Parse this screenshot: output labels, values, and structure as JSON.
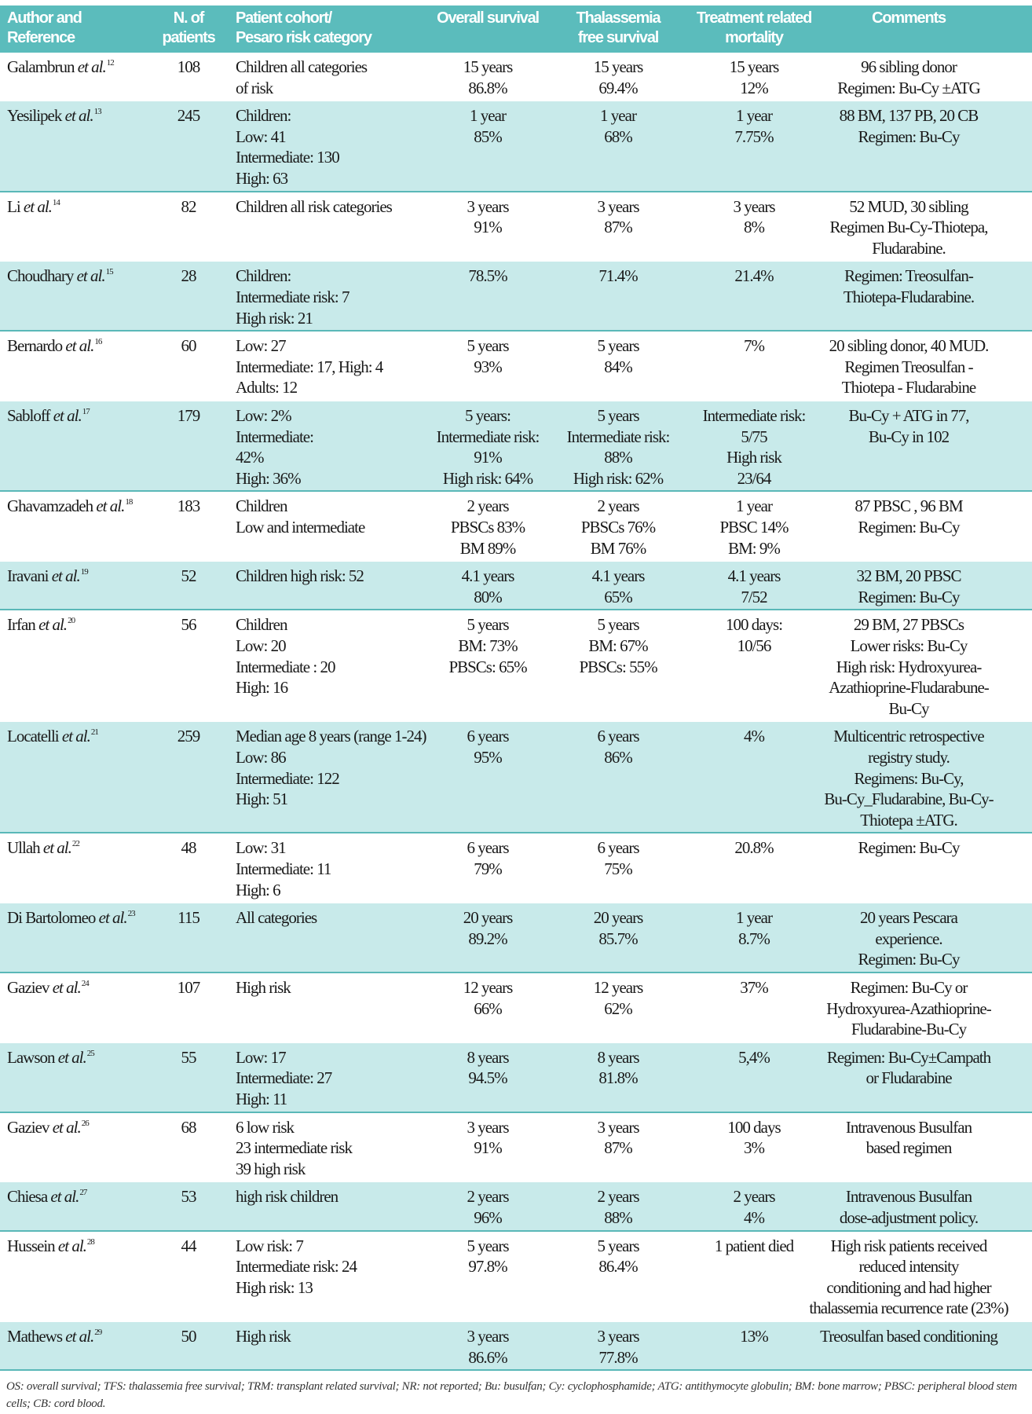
{
  "colors": {
    "header_bg": "#5bbcbc",
    "stripe_bg": "#c8eaea",
    "rule": "#5ab8b8"
  },
  "header": {
    "author": [
      "Author and",
      "Reference"
    ],
    "n": [
      "N. of",
      "patients"
    ],
    "cohort": [
      "Patient cohort/",
      "Pesaro risk category"
    ],
    "os": [
      "Overall survival"
    ],
    "tfs": [
      "Thalassemia",
      "free survival"
    ],
    "trm": [
      "Treatment related",
      "mortality"
    ],
    "comments": [
      "Comments"
    ]
  },
  "rows": [
    {
      "name": "Galambrun",
      "etal": "et al.",
      "ref": "12",
      "n": "108",
      "cohort": [
        "Children all categories",
        "of risk"
      ],
      "os": [
        "15 years",
        "86.8%"
      ],
      "tfs": [
        "15 years",
        "69.4%"
      ],
      "trm": [
        "15 years",
        "12%"
      ],
      "comments": [
        "96 sibling donor",
        "Regimen: Bu-Cy ±ATG"
      ]
    },
    {
      "name": "Yesilipek",
      "etal": "et al.",
      "ref": "13",
      "n": "245",
      "cohort": [
        "Children:",
        "Low: 41",
        "Intermediate: 130",
        "High: 63"
      ],
      "os": [
        "1 year",
        "85%"
      ],
      "tfs": [
        "1 year",
        "68%"
      ],
      "trm": [
        "1 year",
        "7.75%"
      ],
      "comments": [
        "88 BM, 137 PB, 20 CB",
        "Regimen: Bu-Cy"
      ]
    },
    {
      "name": "Li",
      "etal": "et al.",
      "ref": "14",
      "n": "82",
      "cohort": [
        "Children all risk categories"
      ],
      "os": [
        "3 years",
        "91%"
      ],
      "tfs": [
        "3 years",
        "87%"
      ],
      "trm": [
        "3 years",
        "8%"
      ],
      "comments": [
        "52 MUD, 30 sibling",
        "Regimen Bu-Cy-Thiotepa,",
        "Fludarabine."
      ]
    },
    {
      "name": "Choudhary",
      "etal": "et al.",
      "ref": "15",
      "n": "28",
      "cohort": [
        "Children:",
        "Intermediate risk: 7",
        "High risk: 21"
      ],
      "os": [
        "78.5%"
      ],
      "tfs": [
        "71.4%"
      ],
      "trm": [
        "21.4%"
      ],
      "comments": [
        "Regimen: Treosulfan-",
        "Thiotepa-Fludarabine."
      ]
    },
    {
      "name": "Bernardo",
      "etal": "et al.",
      "ref": "16",
      "n": "60",
      "cohort": [
        "Low: 27",
        "Intermediate: 17, High: 4",
        "Adults: 12"
      ],
      "os": [
        "5 years",
        "93%"
      ],
      "tfs": [
        "5 years",
        "84%"
      ],
      "trm": [
        "7%"
      ],
      "comments": [
        "20 sibling donor, 40 MUD.",
        "Regimen Treosulfan -",
        "Thiotepa - Fludarabine"
      ]
    },
    {
      "name": "Sabloff",
      "etal": "et al.",
      "ref": "17",
      "n": "179",
      "cohort": [
        "Low: 2%",
        "Intermediate:",
        "42%",
        "High: 36%"
      ],
      "os": [
        "5 years:",
        "Intermediate risk:",
        "91%",
        "High risk: 64%"
      ],
      "tfs": [
        "5 years",
        "Intermediate risk:",
        "88%",
        "High risk: 62%"
      ],
      "trm": [
        "Intermediate risk:",
        "5/75",
        "High risk",
        "23/64"
      ],
      "comments": [
        "Bu-Cy + ATG in 77,",
        "Bu-Cy in 102"
      ]
    },
    {
      "name": "Ghavamzadeh",
      "etal": "et al.",
      "ref": "18",
      "n": "183",
      "cohort": [
        "Children",
        "Low and intermediate"
      ],
      "os": [
        "2 years",
        "PBSCs 83%",
        "BM 89%"
      ],
      "tfs": [
        "2 years",
        "PBSCs 76%",
        "BM 76%"
      ],
      "trm": [
        "1 year",
        "PBSC 14%",
        "BM: 9%"
      ],
      "comments": [
        "87 PBSC , 96 BM",
        "Regimen: Bu-Cy"
      ]
    },
    {
      "name": "Iravani",
      "etal": "et al.",
      "ref": "19",
      "n": "52",
      "cohort": [
        "Children high risk: 52"
      ],
      "os": [
        "4.1 years",
        "80%"
      ],
      "tfs": [
        "4.1 years",
        "65%"
      ],
      "trm": [
        "4.1 years",
        "7/52"
      ],
      "comments": [
        "32 BM, 20 PBSC",
        "Regimen: Bu-Cy"
      ]
    },
    {
      "name": "Irfan",
      "etal": "et al.",
      "ref": "20",
      "n": "56",
      "cohort": [
        "Children",
        "Low: 20",
        "Intermediate : 20",
        "High: 16"
      ],
      "os": [
        "5 years",
        "BM: 73%",
        "PBSCs: 65%"
      ],
      "tfs": [
        "5 years",
        "BM: 67%",
        "PBSCs: 55%"
      ],
      "trm": [
        "100 days:",
        "10/56"
      ],
      "comments": [
        "29 BM, 27 PBSCs",
        "Lower risks: Bu-Cy",
        "High risk: Hydroxyurea-",
        "Azathioprine-Fludarabune-",
        "Bu-Cy"
      ]
    },
    {
      "name": "Locatelli",
      "etal": "et al.",
      "ref": "21",
      "n": "259",
      "cohort": [
        "Median age 8 years (range 1-24)",
        "Low: 86",
        "Intermediate: 122",
        "High: 51"
      ],
      "os": [
        "6 years",
        "95%"
      ],
      "tfs": [
        "6 years",
        "86%"
      ],
      "trm": [
        "4%"
      ],
      "comments": [
        "Multicentric retrospective",
        "registry study.",
        "Regimens: Bu-Cy,",
        "Bu-Cy_Fludarabine, Bu-Cy-",
        "Thiotepa ±ATG."
      ]
    },
    {
      "name": "Ullah",
      "etal": "et al.",
      "ref": "22",
      "n": "48",
      "cohort": [
        "Low: 31",
        "Intermediate: 11",
        "High: 6"
      ],
      "os": [
        "6 years",
        "79%"
      ],
      "tfs": [
        "6 years",
        "75%"
      ],
      "trm": [
        "20.8%"
      ],
      "comments": [
        "Regimen: Bu-Cy"
      ]
    },
    {
      "name": "Di Bartolomeo",
      "etal": "et al.",
      "ref": "23",
      "n": "115",
      "cohort": [
        "All categories"
      ],
      "os": [
        "20 years",
        "89.2%"
      ],
      "tfs": [
        "20 years",
        "85.7%"
      ],
      "trm": [
        "1 year",
        "8.7%"
      ],
      "comments": [
        "20 years Pescara",
        "experience.",
        "Regimen: Bu-Cy"
      ]
    },
    {
      "name": "Gaziev",
      "etal": "et al.",
      "ref": "24",
      "n": "107",
      "cohort": [
        "High risk"
      ],
      "os": [
        "12 years",
        "66%"
      ],
      "tfs": [
        "12 years",
        "62%"
      ],
      "trm": [
        "37%"
      ],
      "comments": [
        "Regimen: Bu-Cy or",
        "Hydroxyurea-Azathioprine-",
        "Fludarabine-Bu-Cy"
      ]
    },
    {
      "name": "Lawson",
      "etal": "et al.",
      "ref": "25",
      "n": "55",
      "cohort": [
        "Low: 17",
        "Intermediate: 27",
        "High: 11"
      ],
      "os": [
        "8 years",
        "94.5%"
      ],
      "tfs": [
        "8 years",
        "81.8%"
      ],
      "trm": [
        "5,4%"
      ],
      "comments": [
        "Regimen: Bu-Cy±Campath",
        "or Fludarabine"
      ]
    },
    {
      "name": "Gaziev",
      "etal": "et al.",
      "ref": "26",
      "n": "68",
      "cohort": [
        "6 low risk",
        "23 intermediate risk",
        "39 high risk"
      ],
      "os": [
        "3 years",
        "91%"
      ],
      "tfs": [
        "3 years",
        "87%"
      ],
      "trm": [
        "100 days",
        "3%"
      ],
      "comments": [
        "Intravenous Busulfan",
        "based regimen"
      ]
    },
    {
      "name": "Chiesa",
      "etal": "et al.",
      "ref": "27",
      "n": "53",
      "cohort": [
        "high risk children"
      ],
      "os": [
        "2 years",
        "96%"
      ],
      "tfs": [
        "2 years",
        "88%"
      ],
      "trm": [
        "2 years",
        "4%"
      ],
      "comments": [
        "Intravenous Busulfan",
        "dose-adjustment policy."
      ]
    },
    {
      "name": "Hussein",
      "etal": "et al.",
      "ref": "28",
      "n": "44",
      "cohort": [
        "Low risk: 7",
        "Intermediate risk: 24",
        "High risk: 13"
      ],
      "os": [
        "5 years",
        "97.8%"
      ],
      "tfs": [
        "5 years",
        "86.4%"
      ],
      "trm": [
        "1 patient died"
      ],
      "comments": [
        "High risk patients received",
        "reduced intensity",
        "conditioning and had higher",
        "thalassemia recurrence rate (23%)"
      ]
    },
    {
      "name": "Mathews",
      "etal": "et al.",
      "ref": "29",
      "n": "50",
      "cohort": [
        "High risk"
      ],
      "os": [
        "3 years",
        "86.6%"
      ],
      "tfs": [
        "3 years",
        "77.8%"
      ],
      "trm": [
        "13%"
      ],
      "comments": [
        "Treosulfan based conditioning"
      ]
    }
  ],
  "footnote": "OS: overall survival; TFS: thalassemia free survival; TRM: transplant related survival; NR: not reported; Bu: busulfan; Cy: cyclophosphamide; ATG: antithymocyte globulin; BM: bone marrow; PBSC: peripheral blood stem cells; CB: cord blood."
}
